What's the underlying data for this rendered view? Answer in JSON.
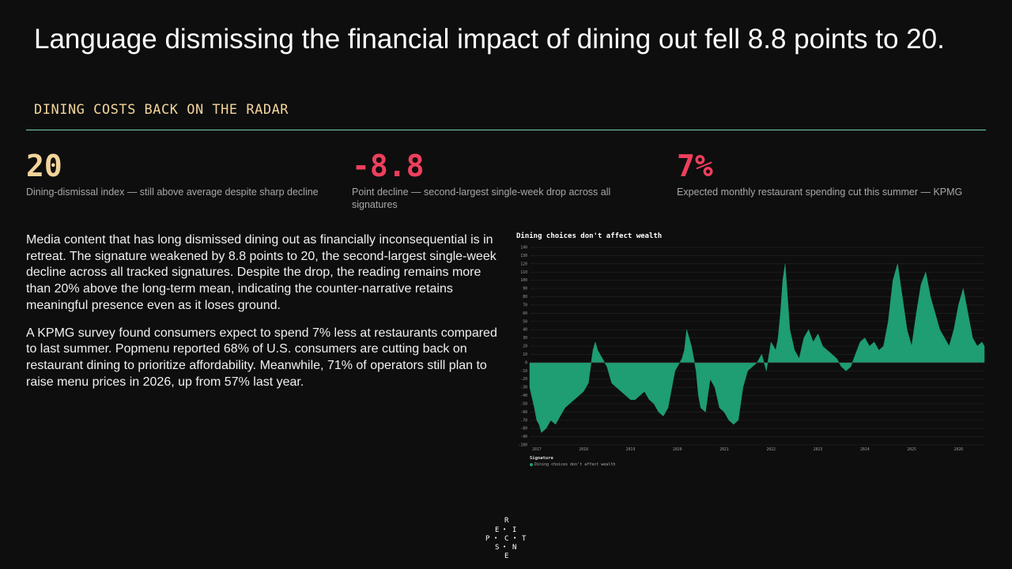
{
  "header": {
    "title": "Language dismissing the financial impact of dining out fell 8.8 points to 20.",
    "subtitle": "DINING COSTS BACK ON THE RADAR"
  },
  "stats": [
    {
      "value": "20",
      "label": "Dining-dismissal index — still above average despite sharp decline",
      "color": "#f2d49b"
    },
    {
      "value": "-8.8",
      "label": "Point decline — second-largest single-week drop across all signatures",
      "color": "#ee3f5c"
    },
    {
      "value": "7%",
      "label": "Expected monthly restaurant spending cut this summer — KPMG",
      "color": "#ee3f5c"
    }
  ],
  "body": {
    "p1": "Media content that has long dismissed dining out as financially inconsequential is in retreat. The signature weakened by 8.8 points to 20, the second-largest single-week decline across all tracked signatures. Despite the drop, the reading remains more than 20% above the long-term mean, indicating the counter-narrative retains meaningful presence even as it loses ground.",
    "p2": "A KPMG survey found consumers expect to spend 7% less at restaurants compared to last summer. Popmenu reported 68% of U.S. consumers are cutting back on restaurant dining to prioritize affordability. Meanwhile, 71% of operators still plan to raise menu prices in 2026, up from 57% last year."
  },
  "chart_data": {
    "type": "area",
    "title": "Dining choices don't affect wealth",
    "xlabel": "",
    "ylabel": "",
    "ylim": [
      -100,
      140
    ],
    "yticks": [
      -100,
      -90,
      -80,
      -70,
      -60,
      -50,
      -40,
      -30,
      -20,
      -10,
      0,
      10,
      20,
      30,
      40,
      50,
      60,
      70,
      80,
      90,
      100,
      110,
      120,
      130,
      140
    ],
    "xlim": [
      2016.85,
      2026.55
    ],
    "xticks": [
      2017,
      2018,
      2019,
      2020,
      2021,
      2022,
      2023,
      2024,
      2025,
      2026
    ],
    "grid": true,
    "legend": {
      "title": "Signature",
      "position": "bottom-left"
    },
    "series": [
      {
        "name": "Dining choices don't affect wealth",
        "color": "#1f9d73",
        "x": [
          2016.85,
          2016.95,
          2017.0,
          2017.05,
          2017.1,
          2017.2,
          2017.3,
          2017.4,
          2017.5,
          2017.6,
          2017.7,
          2017.8,
          2017.9,
          2018.0,
          2018.1,
          2018.2,
          2018.25,
          2018.3,
          2018.4,
          2018.5,
          2018.55,
          2018.6,
          2018.7,
          2018.8,
          2018.9,
          2019.0,
          2019.1,
          2019.2,
          2019.3,
          2019.4,
          2019.5,
          2019.6,
          2019.7,
          2019.75,
          2019.8,
          2019.85,
          2019.9,
          2019.95,
          2020.0,
          2020.1,
          2020.15,
          2020.2,
          2020.3,
          2020.4,
          2020.45,
          2020.5,
          2020.6,
          2020.7,
          2020.8,
          2020.9,
          2021.0,
          2021.1,
          2021.2,
          2021.3,
          2021.4,
          2021.5,
          2021.6,
          2021.7,
          2021.8,
          2021.9,
          2022.0,
          2022.05,
          2022.1,
          2022.15,
          2022.2,
          2022.25,
          2022.3,
          2022.4,
          2022.5,
          2022.6,
          2022.7,
          2022.8,
          2022.9,
          2023.0,
          2023.1,
          2023.2,
          2023.3,
          2023.4,
          2023.5,
          2023.6,
          2023.7,
          2023.8,
          2023.9,
          2024.0,
          2024.1,
          2024.2,
          2024.3,
          2024.4,
          2024.5,
          2024.6,
          2024.7,
          2024.8,
          2024.9,
          2025.0,
          2025.1,
          2025.2,
          2025.3,
          2025.4,
          2025.5,
          2025.6,
          2025.7,
          2025.8,
          2025.9,
          2026.0,
          2026.1,
          2026.2,
          2026.3,
          2026.4,
          2026.5,
          2026.55
        ],
        "values": [
          -30,
          -55,
          -70,
          -75,
          -85,
          -80,
          -70,
          -75,
          -65,
          -55,
          -50,
          -45,
          -40,
          -35,
          -25,
          15,
          25,
          15,
          5,
          -5,
          -15,
          -25,
          -30,
          -35,
          -40,
          -45,
          -45,
          -40,
          -35,
          -45,
          -50,
          -60,
          -65,
          -60,
          -55,
          -40,
          -25,
          -10,
          -5,
          5,
          15,
          40,
          20,
          -10,
          -40,
          -55,
          -60,
          -20,
          -30,
          -55,
          -60,
          -70,
          -75,
          -70,
          -30,
          -10,
          -5,
          0,
          10,
          -10,
          25,
          20,
          15,
          30,
          60,
          100,
          120,
          40,
          15,
          5,
          30,
          40,
          25,
          35,
          20,
          15,
          10,
          5,
          -5,
          -10,
          -5,
          10,
          25,
          30,
          20,
          25,
          15,
          20,
          50,
          100,
          120,
          80,
          40,
          20,
          60,
          95,
          110,
          80,
          60,
          40,
          30,
          20,
          40,
          70,
          90,
          60,
          30,
          20,
          25,
          20
        ]
      }
    ]
  },
  "logo": {
    "letters": [
      "R",
      "E",
      "I",
      "P",
      "C",
      "T",
      "S",
      "N",
      "E"
    ]
  }
}
